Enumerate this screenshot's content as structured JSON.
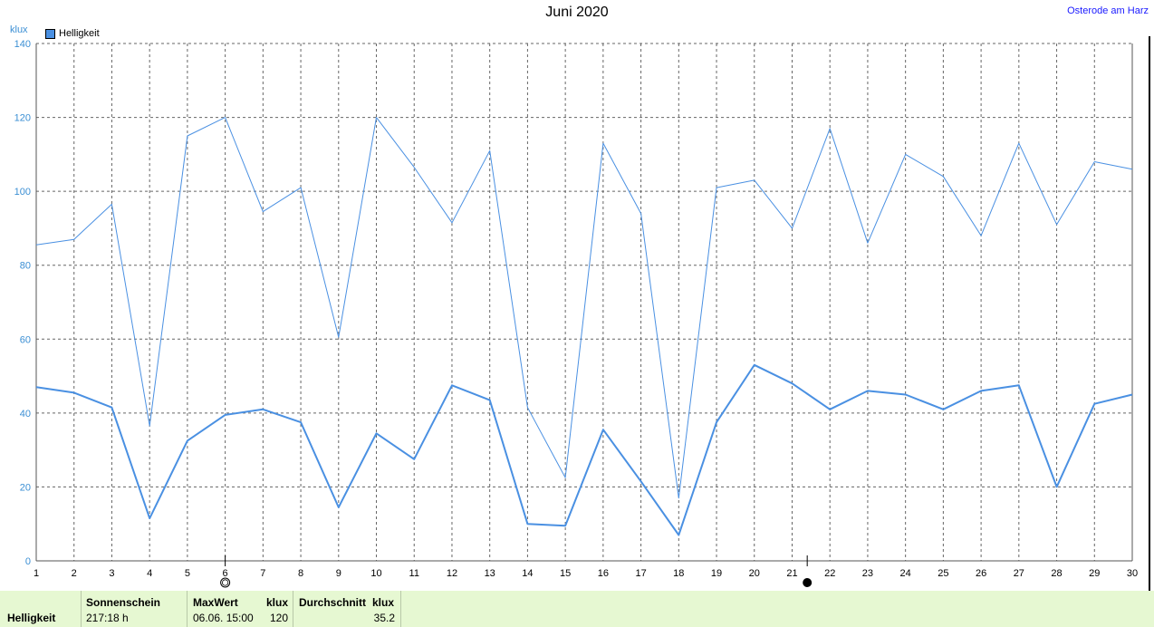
{
  "header": {
    "title": "Juni 2020",
    "location": "Osterode am Harz",
    "unit": "klux",
    "legend_label": "Helligkeit"
  },
  "colors": {
    "series": "#4a90e2",
    "axis_labels": "#3b8fd4",
    "grid": "#666666",
    "footer_bg": "#e6f8d2"
  },
  "chart_data": {
    "type": "line",
    "title": "Juni 2020",
    "ylabel": "klux",
    "x": [
      1,
      2,
      3,
      4,
      5,
      6,
      7,
      8,
      9,
      10,
      11,
      12,
      13,
      14,
      15,
      16,
      17,
      18,
      19,
      20,
      21,
      22,
      23,
      24,
      25,
      26,
      27,
      28,
      29,
      30
    ],
    "xlim": [
      1,
      30
    ],
    "ylim": [
      0,
      140
    ],
    "y_ticks": [
      0,
      20,
      40,
      60,
      80,
      100,
      120,
      140
    ],
    "grid": true,
    "legend": "top-left",
    "moon_phases": [
      {
        "day": 6,
        "phase": "full-moon"
      },
      {
        "day": 21.4,
        "phase": "new-moon"
      }
    ],
    "series": [
      {
        "role": "daily maximum",
        "line": "thin",
        "values": [
          85.5,
          87,
          96.5,
          36.5,
          115,
          120,
          94.5,
          101,
          60.5,
          120,
          106.5,
          91.5,
          111,
          41.5,
          22.5,
          113,
          94,
          17,
          101,
          103,
          90,
          117,
          86,
          110,
          104,
          88,
          113,
          91,
          108,
          106
        ]
      },
      {
        "name": "Helligkeit",
        "role": "daily average",
        "line": "thick",
        "values": [
          47,
          45.5,
          41.5,
          11.5,
          32.5,
          39.5,
          41,
          37.5,
          14.5,
          34.5,
          27.5,
          47.5,
          43.5,
          10,
          9.5,
          35.5,
          21.5,
          7,
          37.5,
          53,
          48,
          41,
          46,
          45,
          41,
          46,
          47.5,
          20,
          42.5,
          45
        ]
      }
    ]
  },
  "footer": {
    "row_label": "Helligkeit",
    "sunshine_label": "Sonnenschein",
    "sunshine_value": "217:18 h",
    "max_label": "MaxWert",
    "max_unit": "klux",
    "max_date": "06.06.  15:00",
    "max_value": "120",
    "avg_label": "Durchschnitt",
    "avg_unit": "klux",
    "avg_value": "35.2"
  }
}
